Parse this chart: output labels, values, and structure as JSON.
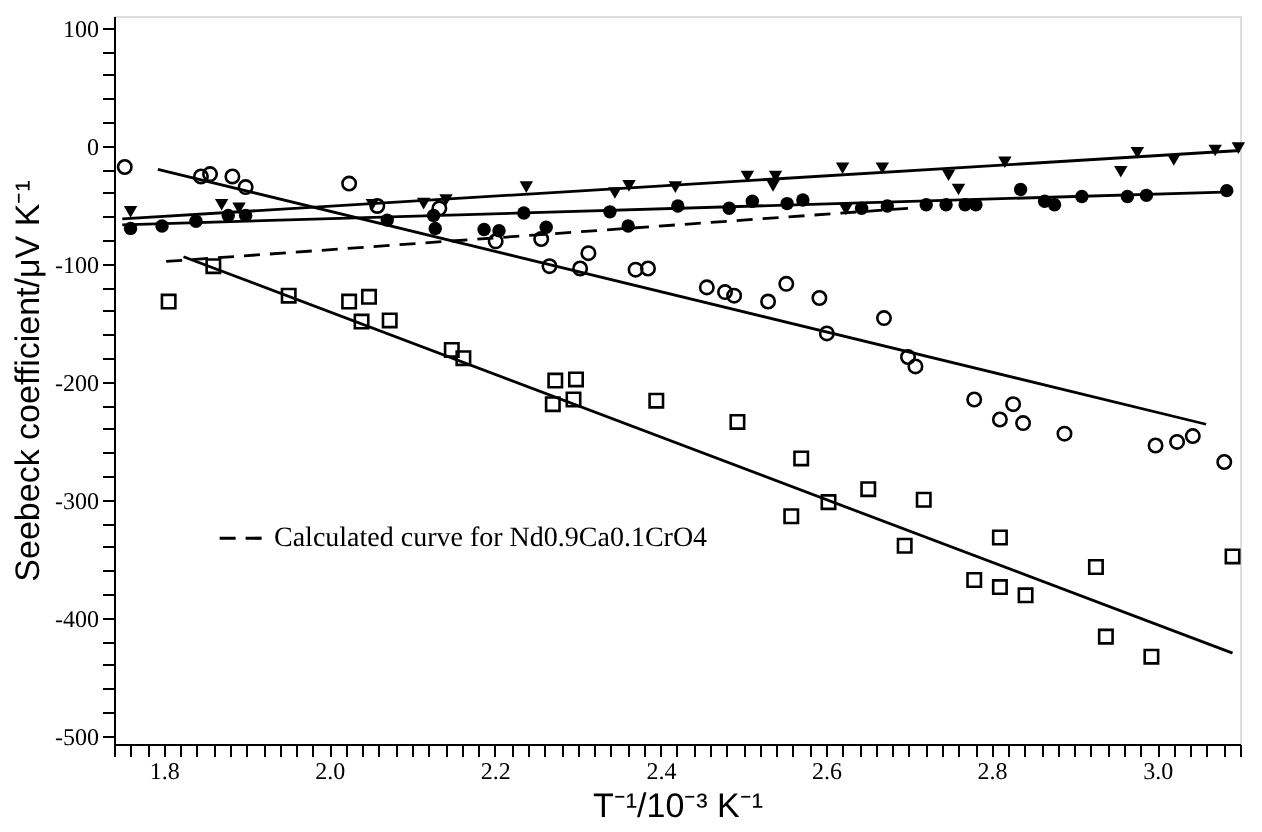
{
  "chart_data": {
    "type": "scatter",
    "xlabel": "T⁻¹/10⁻³ K⁻¹",
    "ylabel": "Seebeck coefficient/μV K⁻¹",
    "xlim": [
      1.74,
      3.1
    ],
    "ylim": [
      -507,
      110
    ],
    "xticks": [
      {
        "value": 1.74,
        "label": null
      },
      {
        "value": 1.76,
        "label": null
      },
      {
        "value": 1.78,
        "label": null
      },
      {
        "value": 1.8,
        "label": "1.8"
      },
      {
        "value": 1.82,
        "label": null
      },
      {
        "value": 1.84,
        "label": null
      },
      {
        "value": 1.86,
        "label": null
      },
      {
        "value": 1.88,
        "label": null
      },
      {
        "value": 1.9,
        "label": null
      },
      {
        "value": 1.92,
        "label": null
      },
      {
        "value": 1.94,
        "label": null
      },
      {
        "value": 1.96,
        "label": null
      },
      {
        "value": 1.98,
        "label": null
      },
      {
        "value": 2.0,
        "label": "2.0"
      },
      {
        "value": 2.02,
        "label": null
      },
      {
        "value": 2.04,
        "label": null
      },
      {
        "value": 2.06,
        "label": null
      },
      {
        "value": 2.08,
        "label": null
      },
      {
        "value": 2.1,
        "label": null
      },
      {
        "value": 2.12,
        "label": null
      },
      {
        "value": 2.14,
        "label": null
      },
      {
        "value": 2.16,
        "label": null
      },
      {
        "value": 2.18,
        "label": null
      },
      {
        "value": 2.2,
        "label": "2.2"
      },
      {
        "value": 2.22,
        "label": null
      },
      {
        "value": 2.24,
        "label": null
      },
      {
        "value": 2.26,
        "label": null
      },
      {
        "value": 2.28,
        "label": null
      },
      {
        "value": 2.3,
        "label": null
      },
      {
        "value": 2.32,
        "label": null
      },
      {
        "value": 2.34,
        "label": null
      },
      {
        "value": 2.36,
        "label": null
      },
      {
        "value": 2.38,
        "label": null
      },
      {
        "value": 2.4,
        "label": "2.4"
      },
      {
        "value": 2.42,
        "label": null
      },
      {
        "value": 2.44,
        "label": null
      },
      {
        "value": 2.46,
        "label": null
      },
      {
        "value": 2.48,
        "label": null
      },
      {
        "value": 2.5,
        "label": null
      },
      {
        "value": 2.52,
        "label": null
      },
      {
        "value": 2.54,
        "label": null
      },
      {
        "value": 2.56,
        "label": null
      },
      {
        "value": 2.58,
        "label": null
      },
      {
        "value": 2.6,
        "label": "2.6"
      },
      {
        "value": 2.62,
        "label": null
      },
      {
        "value": 2.64,
        "label": null
      },
      {
        "value": 2.66,
        "label": null
      },
      {
        "value": 2.68,
        "label": null
      },
      {
        "value": 2.7,
        "label": null
      },
      {
        "value": 2.72,
        "label": null
      },
      {
        "value": 2.74,
        "label": null
      },
      {
        "value": 2.76,
        "label": null
      },
      {
        "value": 2.78,
        "label": null
      },
      {
        "value": 2.8,
        "label": "2.8"
      },
      {
        "value": 2.82,
        "label": null
      },
      {
        "value": 2.84,
        "label": null
      },
      {
        "value": 2.86,
        "label": null
      },
      {
        "value": 2.88,
        "label": null
      },
      {
        "value": 2.9,
        "label": null
      },
      {
        "value": 2.92,
        "label": null
      },
      {
        "value": 2.94,
        "label": null
      },
      {
        "value": 2.96,
        "label": null
      },
      {
        "value": 2.98,
        "label": null
      },
      {
        "value": 3.0,
        "label": "3.0"
      },
      {
        "value": 3.02,
        "label": null
      },
      {
        "value": 3.04,
        "label": null
      },
      {
        "value": 3.06,
        "label": null
      },
      {
        "value": 3.08,
        "label": null
      },
      {
        "value": 3.1,
        "label": null
      }
    ],
    "yticks": [
      {
        "value": 100,
        "label": "100"
      },
      {
        "value": 80,
        "label": null
      },
      {
        "value": 60,
        "label": null
      },
      {
        "value": 40,
        "label": null
      },
      {
        "value": 20,
        "label": null
      },
      {
        "value": 0,
        "label": "0"
      },
      {
        "value": -20,
        "label": null
      },
      {
        "value": -40,
        "label": null
      },
      {
        "value": -60,
        "label": null
      },
      {
        "value": -80,
        "label": null
      },
      {
        "value": -100,
        "label": "-100"
      },
      {
        "value": -120,
        "label": null
      },
      {
        "value": -140,
        "label": null
      },
      {
        "value": -160,
        "label": null
      },
      {
        "value": -180,
        "label": null
      },
      {
        "value": -200,
        "label": "-200"
      },
      {
        "value": -220,
        "label": null
      },
      {
        "value": -240,
        "label": null
      },
      {
        "value": -260,
        "label": null
      },
      {
        "value": -280,
        "label": null
      },
      {
        "value": -300,
        "label": "-300"
      },
      {
        "value": -320,
        "label": null
      },
      {
        "value": -340,
        "label": null
      },
      {
        "value": -360,
        "label": null
      },
      {
        "value": -380,
        "label": null
      },
      {
        "value": -400,
        "label": "-400"
      },
      {
        "value": -420,
        "label": null
      },
      {
        "value": -440,
        "label": null
      },
      {
        "value": -460,
        "label": null
      },
      {
        "value": -480,
        "label": null
      },
      {
        "value": -500,
        "label": "-500"
      }
    ],
    "grid": false,
    "legend": "left",
    "series": [
      {
        "marker": "triangle",
        "color": "#000000",
        "x": [
          1.76,
          1.87,
          1.891,
          2.052,
          2.114,
          2.141,
          2.238,
          2.345,
          2.362,
          2.418,
          2.505,
          2.539,
          2.536,
          2.62,
          2.624,
          2.668,
          2.748,
          2.76,
          2.816,
          2.956,
          2.976,
          3.02,
          3.07,
          3.098
        ],
        "values": [
          -56,
          -50,
          -53,
          -50,
          -49,
          -46,
          -35,
          -40,
          -34,
          -35,
          -26,
          -26,
          -34,
          -19,
          -54,
          -19,
          -25,
          -37,
          -14,
          -22,
          -6,
          -12,
          -4,
          -2
        ]
      },
      {
        "marker": "circle",
        "color": "#000000",
        "x": [
          1.76,
          1.798,
          1.839,
          1.878,
          1.899,
          2.07,
          2.126,
          2.128,
          2.187,
          2.205,
          2.262,
          2.235,
          2.339,
          2.361,
          2.421,
          2.483,
          2.511,
          2.553,
          2.572,
          2.643,
          2.674,
          2.721,
          2.745,
          2.768,
          2.781,
          2.835,
          2.864,
          2.876,
          2.909,
          2.964,
          2.987,
          3.084
        ],
        "values": [
          -70,
          -68,
          -64,
          -59,
          -59,
          -63,
          -59,
          -70,
          -71,
          -72,
          -69,
          -57,
          -56,
          -68,
          -51,
          -53,
          -47,
          -49,
          -46,
          -53,
          -51,
          -50,
          -50,
          -50,
          -50,
          -37,
          -47,
          -50,
          -43,
          -43,
          -42,
          -38
        ]
      },
      {
        "marker": "circle",
        "color": "#000000",
        "x": [
          1.753,
          1.845,
          1.856,
          1.883,
          1.899,
          2.024,
          2.058,
          2.133,
          2.201,
          2.256,
          2.266,
          2.313,
          2.303,
          2.37,
          2.385,
          2.456,
          2.478,
          2.489,
          2.53,
          2.552,
          2.592,
          2.601,
          2.67,
          2.699,
          2.708,
          2.779,
          2.826,
          2.81,
          2.838,
          2.888,
          2.998,
          3.024,
          3.043,
          3.081
        ],
        "values": [
          -18,
          -26,
          -24,
          -26,
          -35,
          -32,
          -51,
          -53,
          -81,
          -79,
          -102,
          -91,
          -104,
          -105,
          -104,
          -120,
          -124,
          -127,
          -132,
          -117,
          -129,
          -159,
          -146,
          -179,
          -187,
          -215,
          -219,
          -232,
          -235,
          -244,
          -254,
          -251,
          -246,
          -268
        ]
      },
      {
        "marker": "square",
        "color": "#000000",
        "x": [
          1.806,
          1.86,
          1.951,
          2.024,
          2.048,
          2.039,
          2.073,
          2.148,
          2.162,
          2.273,
          2.298,
          2.27,
          2.295,
          2.395,
          2.493,
          2.57,
          2.558,
          2.603,
          2.651,
          2.718,
          2.695,
          2.81,
          2.779,
          2.81,
          2.841,
          2.926,
          2.938,
          2.993,
          3.091
        ],
        "values": [
          -132,
          -102,
          -127,
          -132,
          -128,
          -149,
          -148,
          -173,
          -180,
          -199,
          -198,
          -219,
          -215,
          -216,
          -234,
          -265,
          -314,
          -302,
          -291,
          -300,
          -339,
          -332,
          -368,
          -374,
          -381,
          -357,
          -416,
          -433,
          -348
        ]
      },
      {
        "type": "line",
        "line_style": "solid",
        "color": "#000000",
        "x": [
          1.75,
          3.1
        ],
        "values": [
          -62,
          -4
        ]
      },
      {
        "type": "line",
        "line_style": "solid",
        "color": "#000000",
        "x": [
          1.75,
          3.09
        ],
        "values": [
          -67,
          -39
        ]
      },
      {
        "type": "line",
        "line_style": "solid",
        "color": "#000000",
        "x": [
          1.793,
          3.059
        ],
        "values": [
          -20,
          -236
        ]
      },
      {
        "type": "line",
        "line_style": "solid",
        "color": "#000000",
        "x": [
          1.824,
          3.091
        ],
        "values": [
          -94,
          -430
        ]
      },
      {
        "type": "line",
        "line_style": "dashed",
        "name": "Calculated curve for Nd0.9Ca0.1CrO4",
        "color": "#000000",
        "x": [
          1.803,
          2.699
        ],
        "values": [
          -98,
          -53
        ]
      }
    ]
  }
}
